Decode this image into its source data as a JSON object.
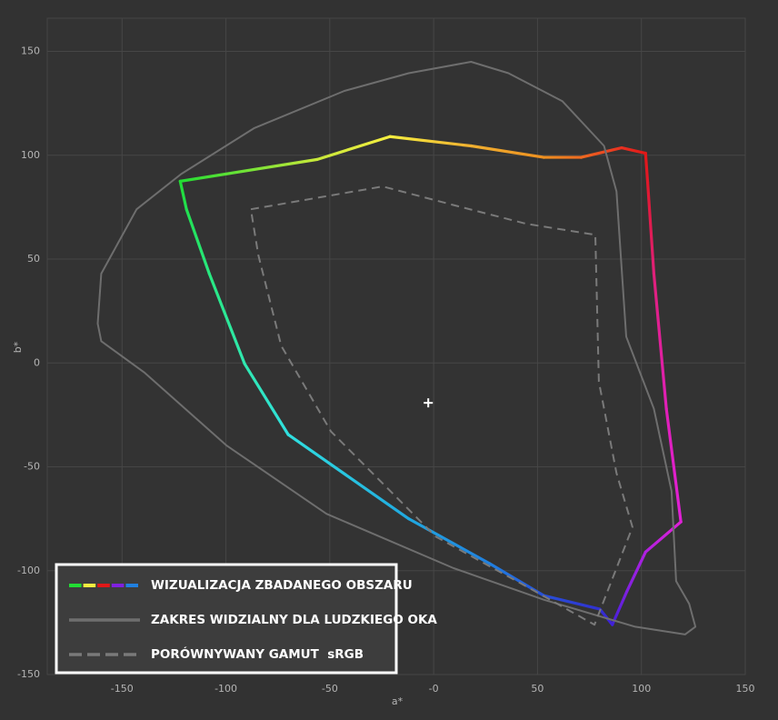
{
  "chart_data": {
    "type": "line",
    "xlabel": "a*",
    "ylabel": "b*",
    "xlim": [
      -186,
      150
    ],
    "ylim": [
      -150,
      166
    ],
    "xticks": [
      -150,
      -100,
      -50,
      {
        "value": 0,
        "label": "-0"
      },
      50,
      100,
      150
    ],
    "yticks": [
      -150,
      -100,
      -50,
      0,
      50,
      100,
      150
    ],
    "grid": true,
    "legend": "lower left",
    "series": [
      {
        "name": "WIZUALIZACJA ZBADANEGO OBSZARU",
        "closed": true,
        "point_colors": [
          "#22dd33",
          "#c8e83a",
          "#f5ee40",
          "#f0b030",
          "#ee9020",
          "#ee6a20",
          "#e83020",
          "#e01818",
          "#e0182a",
          "#e0207a",
          "#e020b8",
          "#e020d8",
          "#b020e0",
          "#8020e0",
          "#4020d8",
          "#3030d0",
          "#2850d8",
          "#2080e0",
          "#20a8e0",
          "#30e0e0",
          "#30e8b0",
          "#28e880",
          "#22e050"
        ],
        "x": [
          -122,
          -56,
          -21,
          18,
          53,
          71,
          90.5,
          102,
          103,
          106,
          112,
          119,
          102,
          93,
          86,
          80,
          53,
          27,
          -12,
          -70,
          -91,
          -108,
          -119
        ],
        "values": [
          87.5,
          98,
          109,
          104.5,
          99,
          99,
          103.6,
          101,
          87,
          43,
          -22,
          -76.5,
          -91,
          -110,
          -126,
          -118.5,
          -112,
          -96.6,
          -75,
          -34.5,
          -0.4,
          43,
          74
        ]
      },
      {
        "name": "ZAKRES WIDZIALNY DLA LUDZKIEGO OKA",
        "color": "#6e6e6e",
        "closed": true,
        "x": [
          -161.7,
          -160,
          -143,
          -121.5,
          -86.5,
          -43,
          -12,
          18,
          36,
          62,
          82,
          88,
          92.7,
          106,
          114.5,
          116.7,
          123,
          126,
          121,
          97,
          53,
          9.6,
          -51.6,
          -99.6,
          -139,
          -160
        ],
        "values": [
          19,
          43,
          74,
          91,
          113,
          131,
          139.5,
          145,
          139.5,
          126,
          104.5,
          82.6,
          12.7,
          -22,
          -61.7,
          -105,
          -116,
          -127,
          -130.7,
          -127,
          -114,
          -98.8,
          -72.6,
          -39.8,
          -4.8,
          10.5
        ]
      },
      {
        "name": "PORÓWNYWANY GAMUT  sRGB",
        "color": "#7a7a7a",
        "dashed": true,
        "closed": true,
        "x": [
          -88,
          -24.5,
          9.6,
          44.6,
          77.8,
          79.5,
          88,
          95.7,
          77.4,
          49,
          0.9,
          -49.4,
          -73.4,
          -84.4
        ],
        "values": [
          74,
          85,
          76,
          67,
          61.7,
          -9,
          -53,
          -79,
          -126,
          -110,
          -83.5,
          -33,
          8.3,
          52
        ]
      }
    ],
    "marker": {
      "x": -2.6,
      "y": -19.2,
      "color": "#ffffff"
    }
  }
}
